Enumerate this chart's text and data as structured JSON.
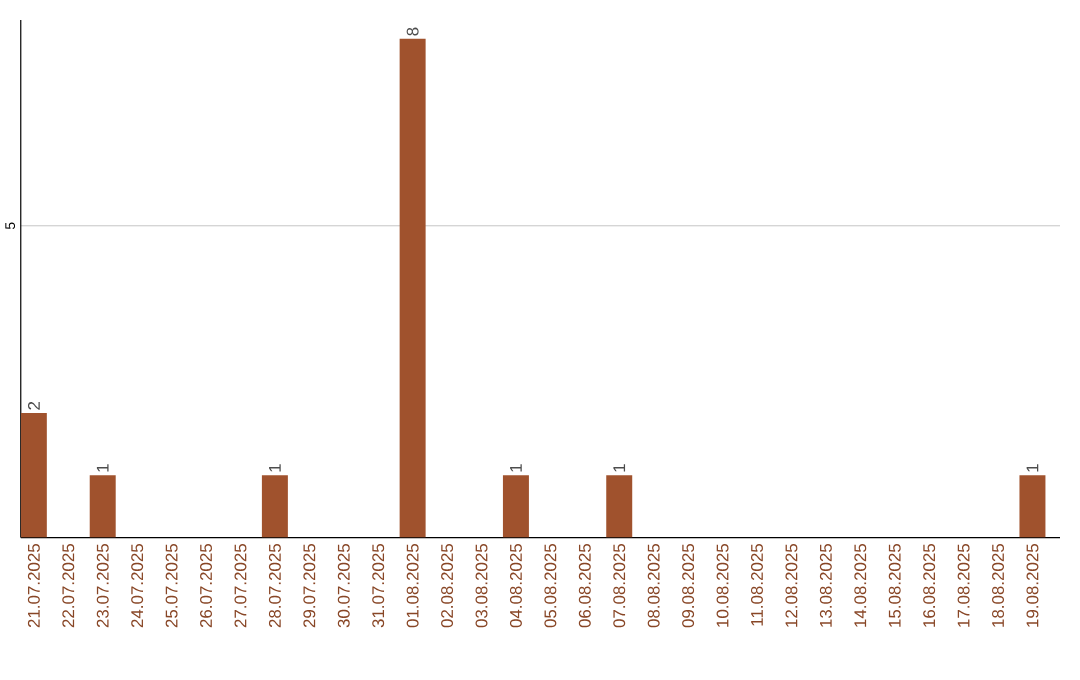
{
  "chart_data": {
    "type": "bar",
    "categories": [
      "21.07.2025",
      "22.07.2025",
      "23.07.2025",
      "24.07.2025",
      "25.07.2025",
      "26.07.2025",
      "27.07.2025",
      "28.07.2025",
      "29.07.2025",
      "30.07.2025",
      "31.07.2025",
      "01.08.2025",
      "02.08.2025",
      "03.08.2025",
      "04.08.2025",
      "05.08.2025",
      "06.08.2025",
      "07.08.2025",
      "08.08.2025",
      "09.08.2025",
      "10.08.2025",
      "11.08.2025",
      "12.08.2025",
      "13.08.2025",
      "14.08.2025",
      "15.08.2025",
      "16.08.2025",
      "17.08.2025",
      "18.08.2025",
      "19.08.2025"
    ],
    "values": [
      2,
      0,
      1,
      0,
      0,
      0,
      0,
      1,
      0,
      0,
      0,
      8,
      0,
      0,
      1,
      0,
      0,
      1,
      0,
      0,
      0,
      0,
      0,
      0,
      0,
      0,
      0,
      0,
      0,
      1
    ],
    "value_labels": [
      "2",
      null,
      "1",
      null,
      null,
      null,
      null,
      "1",
      null,
      null,
      null,
      "8",
      null,
      null,
      "1",
      null,
      null,
      "1",
      null,
      null,
      null,
      null,
      null,
      null,
      null,
      null,
      null,
      null,
      null,
      "1"
    ],
    "color": "#a0522d",
    "ylim": [
      0,
      8.3
    ],
    "yticks": [
      5
    ],
    "grid": "y"
  }
}
